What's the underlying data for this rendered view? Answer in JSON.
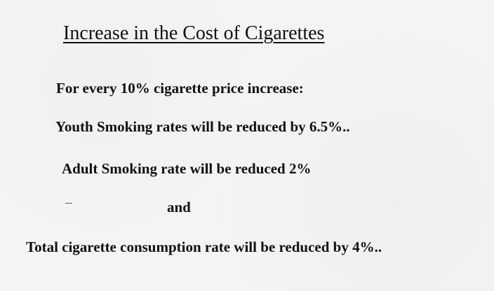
{
  "document": {
    "title": "Increase in the Cost of Cigarettes",
    "lines": [
      "For every 10% cigarette price increase:",
      "Youth Smoking rates will be reduced by 6.5%..",
      "Adult Smoking rate will be reduced 2%",
      "and",
      "Total cigarette consumption rate will be reduced by 4%.."
    ]
  }
}
